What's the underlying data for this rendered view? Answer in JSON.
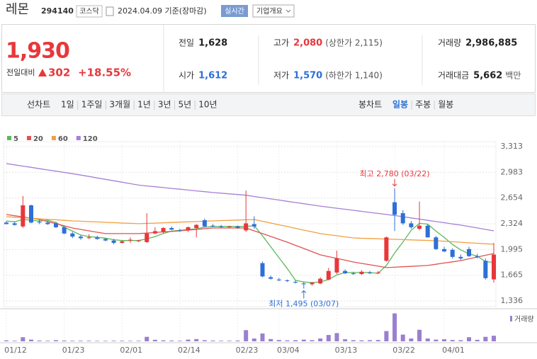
{
  "header": {
    "name": "레몬",
    "code": "294140",
    "market": "코스닥",
    "date": "2024.04.09 기준(장마감)",
    "realtime": "실시간",
    "company": "기업개요"
  },
  "quote": {
    "price": "1,930",
    "change_label": "전일대비",
    "change": "302",
    "rate": "+18.55%",
    "items": [
      {
        "label": "전일",
        "value": "1,628",
        "color": "#222"
      },
      {
        "label": "고가",
        "value": "2,080",
        "note": "(상한가 2,115)",
        "color": "#e8373b"
      },
      {
        "label": "거래량",
        "value": "2,986,885",
        "color": "#222"
      },
      {
        "label": "시가",
        "value": "1,612",
        "color": "#2d6fd6"
      },
      {
        "label": "저가",
        "value": "1,570",
        "note": "(하한가 1,140)",
        "color": "#2d6fd6"
      },
      {
        "label": "거래대금",
        "value": "5,662",
        "note": "백만",
        "color": "#222"
      }
    ]
  },
  "tabs": {
    "line_label": "선차트",
    "line": [
      "1일",
      "1주일",
      "3개월",
      "1년",
      "3년",
      "5년",
      "10년"
    ],
    "candle_label": "봉차트",
    "candle": [
      "일봉",
      "주봉",
      "월봉"
    ],
    "candle_selected": 0
  },
  "chart_data": {
    "type": "candlestick",
    "categories": [
      "01/12",
      null,
      null,
      null,
      null,
      null,
      null,
      "01/23",
      null,
      null,
      null,
      null,
      null,
      null,
      "02/01",
      null,
      null,
      null,
      null,
      null,
      null,
      "02/14",
      null,
      null,
      null,
      null,
      null,
      null,
      "02/23",
      null,
      null,
      null,
      null,
      "03/04",
      null,
      null,
      null,
      null,
      null,
      null,
      "03/13",
      null,
      null,
      null,
      null,
      null,
      null,
      "03/22",
      null,
      null,
      null,
      null,
      null,
      "04/01",
      null,
      null,
      null,
      null,
      null,
      null
    ],
    "open": [
      2340,
      2330,
      2290,
      2560,
      2350,
      2340,
      2330,
      2280,
      2200,
      2160,
      2140,
      2150,
      2130,
      2110,
      2080,
      2110,
      2100,
      2090,
      2200,
      2220,
      2270,
      2240,
      2240,
      2270,
      2370,
      2300,
      2290,
      2280,
      2290,
      2240,
      2320,
      1820,
      1640,
      1610,
      1600,
      1580,
      1560,
      1550,
      1560,
      1610,
      1700,
      1720,
      1690,
      1680,
      1700,
      1690,
      1850,
      2600,
      2460,
      2330,
      2260,
      2300,
      2150,
      2000,
      1990,
      1900,
      2000,
      1910,
      1850,
      1612
    ],
    "high": [
      2360,
      2350,
      2680,
      2570,
      2380,
      2360,
      2350,
      2300,
      2220,
      2180,
      2190,
      2170,
      2140,
      2130,
      2110,
      2150,
      2120,
      2460,
      2280,
      2280,
      2290,
      2260,
      2290,
      2320,
      2390,
      2320,
      2310,
      2300,
      2300,
      2750,
      2420,
      1840,
      1660,
      1630,
      1610,
      1600,
      1580,
      1580,
      1640,
      1760,
      1980,
      1740,
      1710,
      1730,
      1720,
      1720,
      2160,
      2780,
      2500,
      2360,
      2610,
      2320,
      2170,
      2030,
      2010,
      1930,
      2030,
      1940,
      1880,
      2080
    ],
    "low": [
      2320,
      2300,
      2270,
      2330,
      2320,
      2310,
      2270,
      2190,
      2140,
      2120,
      2130,
      2120,
      2100,
      2060,
      2070,
      2080,
      2090,
      2080,
      2190,
      2200,
      2240,
      2220,
      2220,
      2150,
      2280,
      2280,
      2270,
      2270,
      2260,
      2220,
      2260,
      1640,
      1610,
      1590,
      1580,
      1560,
      1495,
      1530,
      1550,
      1600,
      1680,
      1680,
      1670,
      1670,
      1680,
      1680,
      1840,
      2230,
      2310,
      2260,
      2240,
      2150,
      1990,
      1960,
      1880,
      1860,
      1900,
      1880,
      1610,
      1570
    ],
    "close": [
      2320,
      2310,
      2560,
      2340,
      2340,
      2320,
      2280,
      2200,
      2160,
      2140,
      2150,
      2130,
      2110,
      2080,
      2100,
      2120,
      2110,
      2200,
      2230,
      2270,
      2250,
      2230,
      2280,
      2310,
      2290,
      2290,
      2280,
      2290,
      2270,
      2330,
      2290,
      1650,
      1620,
      1600,
      1590,
      1570,
      1550,
      1570,
      1620,
      1720,
      1880,
      1690,
      1680,
      1710,
      1690,
      1700,
      2150,
      2440,
      2330,
      2280,
      2300,
      2150,
      2000,
      1970,
      1900,
      1880,
      1910,
      1900,
      1628,
      1930
    ],
    "up_color": "#e8373b",
    "down_color": "#2d6fd6",
    "series": [
      {
        "name": "5",
        "color": "#5cb85c",
        "values": [
          2360,
          2350,
          2380,
          2370,
          2360,
          2370,
          2340,
          2280,
          2230,
          2180,
          2160,
          2150,
          2140,
          2120,
          2110,
          2110,
          2110,
          2130,
          2160,
          2200,
          2230,
          2240,
          2250,
          2260,
          2280,
          2290,
          2290,
          2290,
          2290,
          2290,
          2300,
          2170,
          2030,
          1890,
          1750,
          1600,
          1580,
          1570,
          1580,
          1610,
          1670,
          1700,
          1700,
          1700,
          1700,
          1690,
          1790,
          1950,
          2090,
          2240,
          2330,
          2320,
          2230,
          2150,
          2060,
          1990,
          1940,
          1910,
          1840,
          1830
        ]
      },
      {
        "name": "20",
        "color": "#e05252",
        "values": [
          2443,
          2427,
          2412,
          2396,
          2380,
          2353,
          2325,
          2298,
          2270,
          2252,
          2234,
          2216,
          2198,
          2198,
          2198,
          2198,
          2198,
          2205,
          2212,
          2220,
          2227,
          2234,
          2243,
          2252,
          2261,
          2270,
          2270,
          2270,
          2270,
          2270,
          2234,
          2198,
          2162,
          2125,
          2089,
          2048,
          2008,
          1967,
          1926,
          1903,
          1881,
          1858,
          1835,
          1817,
          1799,
          1781,
          1763,
          1768,
          1774,
          1779,
          1785,
          1790,
          1806,
          1822,
          1837,
          1853,
          1876,
          1898,
          1921,
          1944
        ]
      },
      {
        "name": "60",
        "color": "#f0a040",
        "values": [
          2415,
          2408,
          2402,
          2395,
          2388,
          2381,
          2375,
          2368,
          2361,
          2357,
          2352,
          2348,
          2343,
          2339,
          2334,
          2330,
          2325,
          2329,
          2333,
          2337,
          2341,
          2345,
          2349,
          2353,
          2357,
          2361,
          2365,
          2368,
          2372,
          2375,
          2379,
          2356,
          2334,
          2311,
          2289,
          2266,
          2243,
          2221,
          2198,
          2184,
          2171,
          2157,
          2143,
          2139,
          2136,
          2132,
          2129,
          2125,
          2121,
          2118,
          2114,
          2111,
          2107,
          2101,
          2094,
          2088,
          2081,
          2075,
          2068,
          2062
        ]
      },
      {
        "name": "120",
        "color": "#a77fd6",
        "values": [
          3095,
          3079,
          3063,
          3047,
          3030,
          3014,
          2998,
          2982,
          2966,
          2948,
          2930,
          2911,
          2893,
          2875,
          2857,
          2838,
          2820,
          2809,
          2799,
          2788,
          2777,
          2767,
          2756,
          2745,
          2735,
          2724,
          2716,
          2707,
          2699,
          2690,
          2674,
          2659,
          2643,
          2628,
          2612,
          2597,
          2581,
          2566,
          2550,
          2537,
          2523,
          2510,
          2497,
          2483,
          2470,
          2457,
          2443,
          2430,
          2415,
          2399,
          2384,
          2368,
          2353,
          2338,
          2322,
          2307,
          2289,
          2271,
          2252,
          2234
        ]
      }
    ],
    "volume": {
      "name": "거래량",
      "color": "#9b7fcf",
      "values": [
        500000,
        300000,
        2200000,
        900000,
        400000,
        300000,
        600000,
        400000,
        300000,
        300000,
        300000,
        250000,
        250000,
        300000,
        300000,
        250000,
        300000,
        2400000,
        800000,
        500000,
        400000,
        300000,
        900000,
        1200000,
        600000,
        400000,
        300000,
        300000,
        400000,
        6000000,
        1500000,
        4200000,
        1200000,
        700000,
        500000,
        600000,
        900000,
        600000,
        1500000,
        3400000,
        4400000,
        1100000,
        600000,
        500000,
        600000,
        700000,
        5500000,
        15000000,
        3600000,
        1500000,
        6200000,
        1500000,
        900000,
        1100000,
        700000,
        600000,
        2200000,
        800000,
        2400000,
        2986885
      ]
    },
    "vlim": [
      0,
      16000000
    ],
    "ylim": [
      1336,
      3313
    ],
    "yticks": [
      {
        "value": 3313,
        "label": "3,313"
      },
      {
        "value": 2983,
        "label": "2,983"
      },
      {
        "value": 2654,
        "label": "2,654"
      },
      {
        "value": 2324,
        "label": "2,324"
      },
      {
        "value": 1995,
        "label": "1,995"
      },
      {
        "value": 1665,
        "label": "1,665"
      },
      {
        "value": 1336,
        "label": "1,336"
      }
    ],
    "grid": true,
    "annotations": [
      {
        "text": "최고 2,780 (03/22)",
        "color": "#e8373b",
        "kind": "high"
      },
      {
        "text": "최저 1,495 (03/07)",
        "color": "#2d6fd6",
        "kind": "low"
      }
    ]
  }
}
